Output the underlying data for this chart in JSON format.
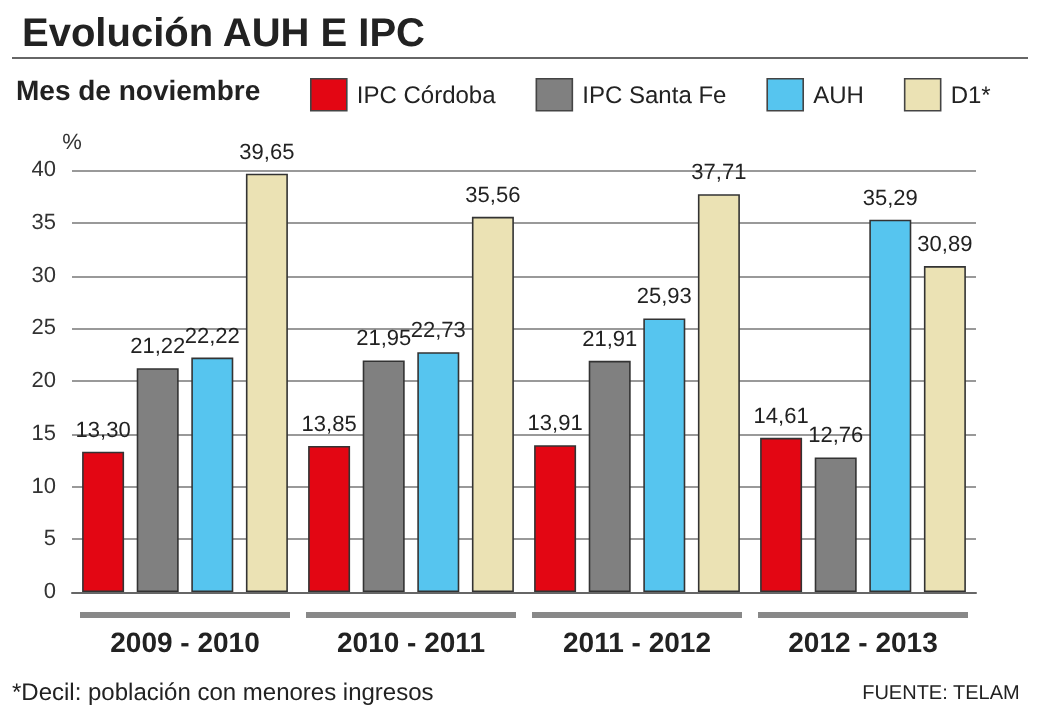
{
  "chart_data": {
    "type": "bar",
    "title": "Evolución AUH E IPC",
    "legend_title": "Mes de noviembre",
    "ylabel": "%",
    "categories": [
      "2009 - 2010",
      "2010 - 2011",
      "2011 - 2012",
      "2012 - 2013"
    ],
    "series": [
      {
        "name": "IPC Córdoba",
        "color": "#e30613",
        "values": [
          13.3,
          13.85,
          13.91,
          14.61
        ],
        "value_labels": [
          "13,30",
          "13,85",
          "13,91",
          "14,61"
        ]
      },
      {
        "name": "IPC Santa Fe",
        "color": "#808080",
        "values": [
          21.22,
          21.95,
          21.91,
          12.76
        ],
        "value_labels": [
          "21,22",
          "21,95",
          "21,91",
          "12,76"
        ]
      },
      {
        "name": "AUH",
        "color": "#56c5ef",
        "values": [
          22.22,
          22.73,
          25.93,
          35.29
        ],
        "value_labels": [
          "22,22",
          "22,73",
          "25,93",
          "35,29"
        ]
      },
      {
        "name": "D1*",
        "color": "#ebe2b4",
        "values": [
          39.65,
          35.56,
          37.71,
          30.89
        ],
        "value_labels": [
          "39,65",
          "35,56",
          "37,71",
          "30,89"
        ]
      }
    ],
    "ylim": [
      0,
      40
    ],
    "yticks": [
      0,
      5,
      10,
      15,
      20,
      25,
      30,
      35,
      40
    ],
    "grid": "y",
    "legend": "top",
    "annotations": [
      "*Decil: población con menores ingresos",
      "FUENTE: TELAM"
    ]
  }
}
